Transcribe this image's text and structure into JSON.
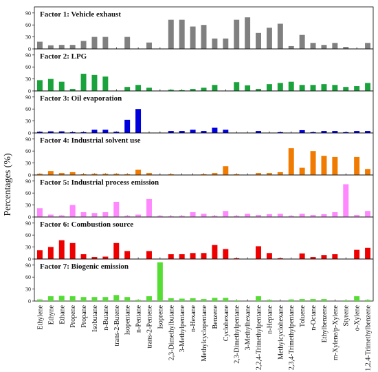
{
  "chart_data": {
    "type": "bar",
    "ylabel": "Percentages (%)",
    "ylim": [
      0,
      100
    ],
    "yticks": [
      0,
      30,
      60,
      90
    ],
    "grid": false,
    "categories": [
      "Ethylene",
      "Ethyne",
      "Ethane",
      "Propene",
      "Propane",
      "Isobutane",
      "n-Butane",
      "trans-2-Butene",
      "Isopentane",
      "n-Pentane",
      "trans-2-Pentene",
      "Isoprene",
      "2,3-Dimethylbutane",
      "3-Methylpentane",
      "n-Hexane",
      "Methylcyclopentane",
      "Benzene",
      "Cyclohexane",
      "2,3-Dimethylpentane",
      "3-Methylhexane",
      "2,2,4-Trimethylpentane",
      "n-Heptane",
      "Methylcyclohexane",
      "2,3,4-Trimethylpentane",
      "Toluene",
      "n-Octane",
      "Ethylbenzene",
      "m-Xylene/p-Xylene",
      "Styrene",
      "o-Xylene",
      "1,2,4-Trimethylbenzene"
    ],
    "series": [
      {
        "name": "Factor 1: Vehicle exhaust",
        "color": "#808080",
        "values": [
          18,
          9,
          10,
          10,
          20,
          30,
          30,
          0,
          30,
          0,
          16,
          0,
          73,
          73,
          56,
          60,
          26,
          26,
          73,
          79,
          40,
          53,
          63,
          7,
          35,
          15,
          10,
          15,
          5,
          0,
          15
        ]
      },
      {
        "name": "Factor 2: LPG",
        "color": "#1aa33c",
        "values": [
          27,
          30,
          23,
          5,
          43,
          40,
          36,
          0,
          10,
          15,
          8,
          0,
          3,
          2,
          5,
          8,
          15,
          0,
          22,
          14,
          5,
          17,
          20,
          23,
          15,
          15,
          17,
          15,
          10,
          12,
          20
        ]
      },
      {
        "name": "Factor 3: Oil evaporation",
        "color": "#0000dd",
        "values": [
          3,
          4,
          4,
          2,
          2,
          8,
          8,
          3,
          33,
          60,
          0,
          0,
          5,
          5,
          8,
          5,
          13,
          8,
          0,
          0,
          5,
          0,
          2,
          0,
          7,
          2,
          5,
          5,
          2,
          5,
          5
        ]
      },
      {
        "name": "Factor 4: Industrial solvent use",
        "color": "#f07b00",
        "values": [
          3,
          10,
          5,
          7,
          2,
          3,
          3,
          3,
          2,
          13,
          5,
          0,
          2,
          0,
          0,
          2,
          5,
          22,
          2,
          0,
          5,
          5,
          7,
          67,
          18,
          60,
          48,
          45,
          0,
          45,
          15
        ]
      },
      {
        "name": "Factor 5: Industrial process emission",
        "color": "#ff88ff",
        "values": [
          22,
          6,
          4,
          30,
          12,
          10,
          12,
          38,
          3,
          6,
          45,
          3,
          2,
          3,
          12,
          8,
          3,
          15,
          3,
          8,
          5,
          7,
          8,
          3,
          8,
          5,
          7,
          12,
          82,
          5,
          15
        ]
      },
      {
        "name": "Factor 6: Combustion source",
        "color": "#ee0000",
        "values": [
          22,
          30,
          47,
          40,
          12,
          5,
          6,
          40,
          20,
          0,
          20,
          0,
          12,
          12,
          15,
          15,
          35,
          25,
          2,
          0,
          32,
          15,
          2,
          0,
          14,
          5,
          10,
          12,
          0,
          23,
          28
        ]
      },
      {
        "name": "Factor 7: Biogenic emission",
        "color": "#55dd33",
        "values": [
          4,
          12,
          13,
          12,
          10,
          10,
          10,
          15,
          10,
          3,
          12,
          97,
          7,
          6,
          7,
          5,
          8,
          8,
          2,
          0,
          12,
          3,
          0,
          4,
          5,
          5,
          5,
          0,
          2,
          12,
          3
        ]
      }
    ]
  }
}
